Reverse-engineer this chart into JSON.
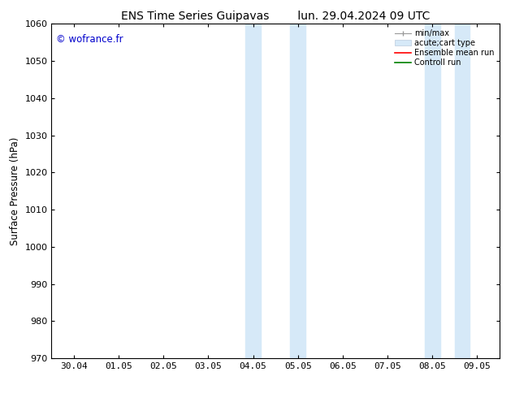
{
  "title": "ENS Time Series Guipavas        lun. 29.04.2024 09 UTC",
  "ylabel": "Surface Pressure (hPa)",
  "watermark": "© wofrance.fr",
  "watermark_color": "#0000cc",
  "ylim": [
    970,
    1060
  ],
  "yticks": [
    970,
    980,
    990,
    1000,
    1010,
    1020,
    1030,
    1040,
    1050,
    1060
  ],
  "xtick_labels": [
    "30.04",
    "01.05",
    "02.05",
    "03.05",
    "04.05",
    "05.05",
    "06.05",
    "07.05",
    "08.05",
    "09.05"
  ],
  "xtick_positions": [
    0,
    1,
    2,
    3,
    4,
    5,
    6,
    7,
    8,
    9
  ],
  "xmin": -0.5,
  "xmax": 9.5,
  "shaded_regions": [
    {
      "xmin": 3.83,
      "xmax": 4.17,
      "color": "#d6e9f8"
    },
    {
      "xmin": 4.83,
      "xmax": 5.17,
      "color": "#d6e9f8"
    },
    {
      "xmin": 7.83,
      "xmax": 8.17,
      "color": "#d6e9f8"
    },
    {
      "xmin": 8.5,
      "xmax": 8.83,
      "color": "#d6e9f8"
    }
  ],
  "bg_color": "#ffffff",
  "title_fontsize": 10,
  "tick_fontsize": 8,
  "ylabel_fontsize": 8.5
}
